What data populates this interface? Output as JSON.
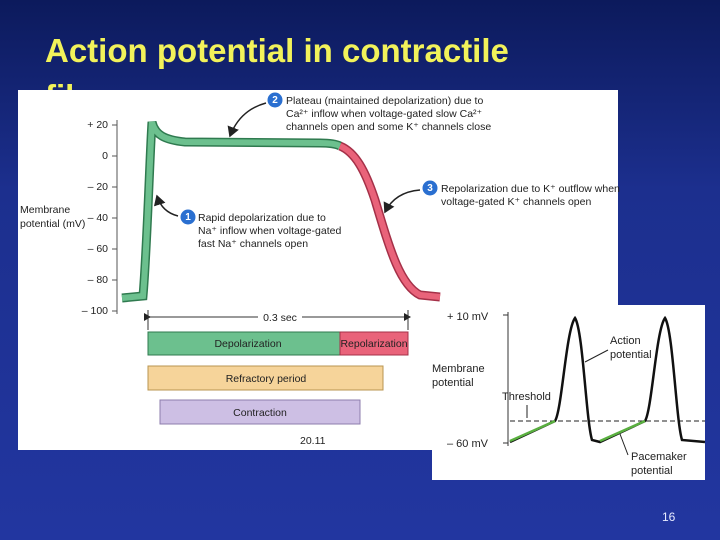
{
  "slide": {
    "title": "Action potential in contractile fibers",
    "page_number": "16"
  },
  "figure_1": {
    "y_axis_label": [
      "Membrane",
      "potential (mV)"
    ],
    "y_ticks": [
      "+ 20",
      "0",
      "– 20",
      "– 40",
      "– 60",
      "– 80",
      "– 100"
    ],
    "callouts": [
      {
        "number": "1",
        "lines": [
          "Rapid depolarization due to",
          "Na⁺ inflow when voltage-gated",
          "fast Na⁺ channels open"
        ]
      },
      {
        "number": "2",
        "lines": [
          "Plateau (maintained depolarization) due to",
          "Ca²⁺ inflow when voltage-gated slow Ca²⁺",
          "channels open and some K⁺ channels close"
        ]
      },
      {
        "number": "3",
        "lines": [
          "Repolarization due to K⁺ outflow when",
          "voltage-gated K⁺ channels open"
        ]
      }
    ],
    "duration": "0.3 sec",
    "bars": [
      "Depolarization",
      "Repolarization",
      "Refractory period",
      "Contraction"
    ],
    "figure_number": "20.11"
  },
  "figure_2": {
    "y_ticks": [
      "+ 10 mV",
      "– 60 mV"
    ],
    "y_axis_label": [
      "Membrane",
      "potential"
    ],
    "threshold": "Threshold",
    "action_potential": [
      "Action",
      "potential"
    ],
    "pacemaker_potential": [
      "Pacemaker",
      "potential"
    ]
  }
}
